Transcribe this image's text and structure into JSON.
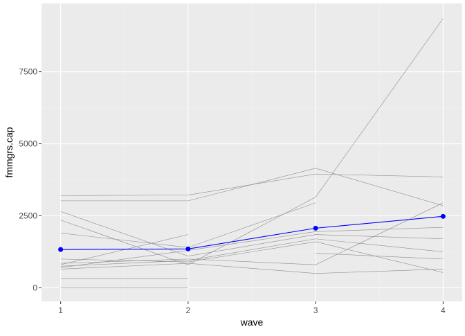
{
  "chart_data": {
    "type": "line",
    "x_label": "wave",
    "y_label": "fmmgrs.cap",
    "x": [
      1,
      2,
      3,
      4
    ],
    "xlim": [
      0.85,
      4.15
    ],
    "xticks": [
      1,
      2,
      3,
      4
    ],
    "ylim": [
      -470,
      9870
    ],
    "yticks": [
      0,
      2500,
      5000,
      7500
    ],
    "grid": true,
    "series": [
      {
        "color": "#8c8c8c",
        "values": [
          0,
          0,
          null,
          null
        ]
      },
      {
        "color": "#8c8c8c",
        "values": [
          310,
          310,
          null,
          null
        ]
      },
      {
        "color": "#8c8c8c",
        "values": [
          3020,
          3020,
          4150,
          2850
        ]
      },
      {
        "color": "#8c8c8c",
        "values": [
          3200,
          3220,
          3950,
          3850
        ]
      },
      {
        "color": "#8c8c8c",
        "values": [
          2650,
          1100,
          1850,
          1700
        ]
      },
      {
        "color": "#8c8c8c",
        "values": [
          2350,
          800,
          3150,
          9350
        ]
      },
      {
        "color": "#8c8c8c",
        "values": [
          1900,
          1400,
          2950,
          null
        ]
      },
      {
        "color": "#8c8c8c",
        "values": [
          800,
          1850,
          null,
          null
        ]
      },
      {
        "color": "#8c8c8c",
        "values": [
          700,
          1300,
          1950,
          2100
        ]
      },
      {
        "color": "#8c8c8c",
        "values": [
          850,
          1000,
          800,
          2950
        ]
      },
      {
        "color": "#8c8c8c",
        "values": [
          650,
          850,
          500,
          650
        ]
      },
      {
        "color": "#8c8c8c",
        "values": [
          1000,
          900,
          1600,
          530
        ]
      },
      {
        "color": "#8c8c8c",
        "values": [
          null,
          null,
          1200,
          1000
        ]
      },
      {
        "color": "#8c8c8c",
        "values": [
          750,
          950,
          1700,
          1250
        ]
      },
      {
        "color": "#0000ff",
        "values": [
          1330,
          1350,
          2070,
          2480
        ],
        "points": true
      }
    ]
  }
}
